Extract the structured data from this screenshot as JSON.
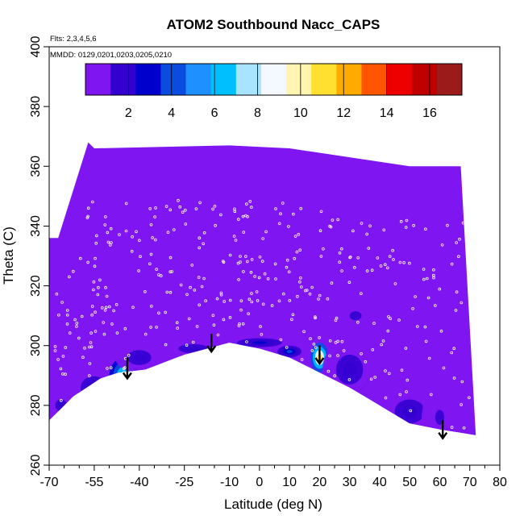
{
  "chart_data": {
    "type": "heatmap",
    "title": "ATOM2 Southbound Nacc_CAPS",
    "subtitle_lines": [
      "Flts: 2,3,4,5,6",
      "MMDD: 0129,0201,0203,0205,0210"
    ],
    "xlabel": "Latitude (deg N)",
    "ylabel": "Theta (C)",
    "xlim": [
      -70,
      80
    ],
    "ylim": [
      260,
      400
    ],
    "x_ticks": [
      -70,
      -55,
      -40,
      -25,
      -10,
      0,
      10,
      20,
      30,
      40,
      50,
      60,
      70,
      80
    ],
    "x_minor_ticks": [
      -65,
      -60,
      -50,
      -45,
      -35,
      -30,
      -20,
      -15,
      -5,
      5,
      15,
      25,
      35,
      45,
      55,
      65,
      75
    ],
    "y_ticks": [
      260,
      280,
      300,
      320,
      340,
      360,
      380,
      400
    ],
    "colorbar": {
      "min": 0,
      "max": 17.5,
      "ticks": [
        2,
        4,
        6,
        8,
        10,
        12,
        14,
        16
      ],
      "division_step": 2,
      "colors": [
        "#7F16F2",
        "#3300D0",
        "#0000CC",
        "#0A4CE0",
        "#1E90FF",
        "#00BFFF",
        "#A8E4FF",
        "#F4F8FF",
        "#FFF5B0",
        "#FFE030",
        "#FFAA00",
        "#FF5500",
        "#EE0000",
        "#C00000",
        "#9B1B1B"
      ],
      "placement": "top inside plot"
    },
    "field_envelope": {
      "top": [
        [
          -70,
          336
        ],
        [
          -67,
          336
        ],
        [
          -62,
          352
        ],
        [
          -57,
          368
        ],
        [
          -55,
          366
        ],
        [
          -10,
          367
        ],
        [
          10,
          366
        ],
        [
          50,
          360
        ],
        [
          67,
          360
        ]
      ],
      "bottom": [
        [
          -70,
          275
        ],
        [
          -62,
          283
        ],
        [
          -53,
          289
        ],
        [
          -47,
          291
        ],
        [
          -38,
          292
        ],
        [
          -25,
          297
        ],
        [
          -10,
          301
        ],
        [
          0,
          299
        ],
        [
          10,
          296
        ],
        [
          20,
          291
        ],
        [
          30,
          286
        ],
        [
          40,
          280
        ],
        [
          50,
          274
        ],
        [
          60,
          272
        ],
        [
          72,
          270
        ]
      ]
    },
    "background_value": 0.3,
    "hotspots": [
      {
        "x": -45,
        "y": 290,
        "value": 7.5,
        "rx": 5,
        "ry": 6
      },
      {
        "x": -55,
        "y": 286,
        "value": 2.5,
        "rx": 6,
        "ry": 5
      },
      {
        "x": -40,
        "y": 296,
        "value": 2.0,
        "rx": 8,
        "ry": 5
      },
      {
        "x": -22,
        "y": 299,
        "value": 1.8,
        "rx": 10,
        "ry": 3
      },
      {
        "x": 0,
        "y": 301,
        "value": 2.5,
        "rx": 10,
        "ry": 2
      },
      {
        "x": 10,
        "y": 298,
        "value": 4.0,
        "rx": 4,
        "ry": 2
      },
      {
        "x": 20,
        "y": 296,
        "value": 10.5,
        "rx": 3,
        "ry": 5
      },
      {
        "x": 33,
        "y": 290,
        "value": 5.0,
        "rx": 4,
        "ry": 5
      },
      {
        "x": 30,
        "y": 292,
        "value": 2.0,
        "rx": 9,
        "ry": 10
      },
      {
        "x": 50,
        "y": 278,
        "value": 1.5,
        "rx": 10,
        "ry": 8
      },
      {
        "x": 60,
        "y": 276,
        "value": 1.2,
        "rx": 6,
        "ry": 10
      },
      {
        "x": -8,
        "y": 324,
        "value": 0.8,
        "rx": 5,
        "ry": 3
      },
      {
        "x": 32,
        "y": 310,
        "value": 1.3,
        "rx": 8,
        "ry": 6
      },
      {
        "x": 60,
        "y": 305,
        "value": 1.0,
        "rx": 8,
        "ry": 8
      },
      {
        "x": -66,
        "y": 280,
        "value": 1.5,
        "rx": 4,
        "ry": 4
      }
    ],
    "arrows": [
      {
        "x": -44,
        "y_from": 296,
        "y_to": 289
      },
      {
        "x": -16,
        "y_from": 304,
        "y_to": 298
      },
      {
        "x": 20,
        "y_from": 300,
        "y_to": 294
      },
      {
        "x": 61,
        "y_from": 275,
        "y_to": 269
      }
    ],
    "sample_points_note": "small white open circles marking flight sample locations"
  }
}
